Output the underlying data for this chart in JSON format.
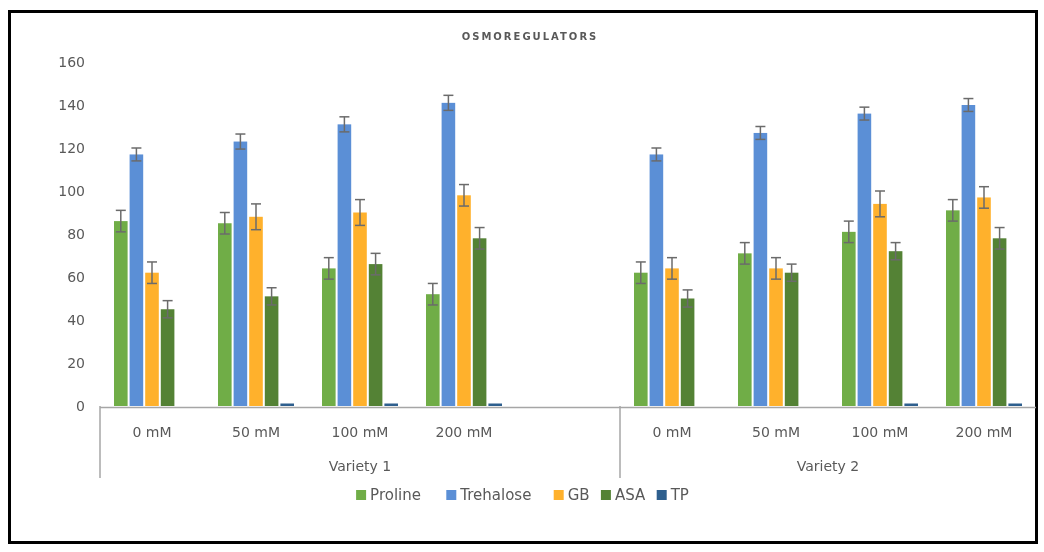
{
  "chart_data": {
    "type": "bar",
    "title": "OSMOREGULATORS",
    "categories": [
      "0 mM",
      "50 mM",
      "100 mM",
      "200 mM",
      null,
      "0 mM",
      "50 mM",
      "100 mM",
      "200 mM"
    ],
    "annotations": [
      "Variety 1",
      "Variety 2"
    ],
    "series": [
      {
        "name": "Proline",
        "color": "#70ad47",
        "values": [
          86,
          85,
          64,
          52,
          null,
          62,
          71,
          81,
          91
        ],
        "errors": [
          5,
          5,
          5,
          5,
          null,
          5,
          5,
          5,
          5
        ]
      },
      {
        "name": "Trehalose",
        "color": "#5b8fd6",
        "values": [
          117,
          123,
          131,
          141,
          null,
          117,
          127,
          136,
          140
        ],
        "errors": [
          3,
          3.5,
          3.5,
          3.5,
          null,
          3,
          3,
          3,
          3
        ]
      },
      {
        "name": "GB",
        "color": "#ffb12c",
        "values": [
          62,
          88,
          90,
          98,
          null,
          64,
          64,
          94,
          97
        ],
        "errors": [
          5,
          6,
          6,
          5,
          null,
          5,
          5,
          6,
          5
        ]
      },
      {
        "name": "ASA",
        "color": "#548235",
        "values": [
          45,
          51,
          66,
          78,
          null,
          50,
          62,
          72,
          78
        ],
        "errors": [
          4,
          4,
          5,
          5,
          null,
          4,
          4,
          4,
          5
        ]
      },
      {
        "name": "TP",
        "color": "#2e5f8e",
        "values": [
          null,
          0.5,
          0.5,
          0.5,
          null,
          null,
          null,
          0.5,
          0.5
        ]
      }
    ],
    "ylim": [
      0,
      160
    ],
    "yticks": [
      0,
      20,
      40,
      60,
      80,
      100,
      120,
      140,
      160
    ],
    "legend": "bottom"
  }
}
